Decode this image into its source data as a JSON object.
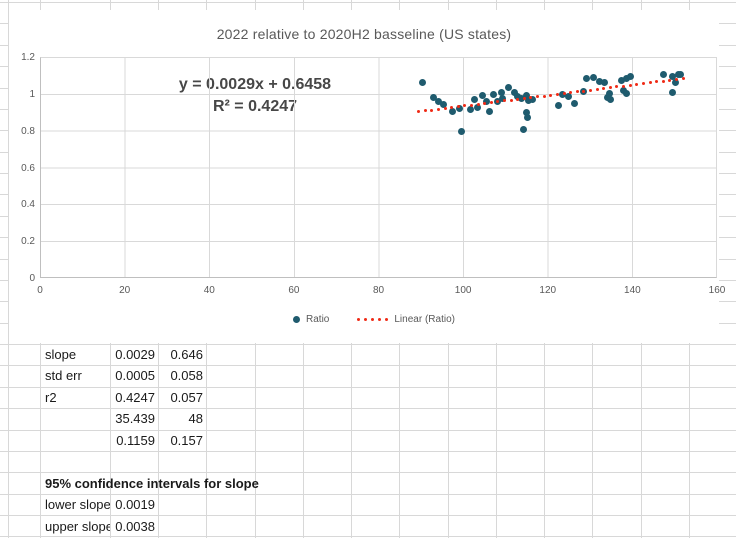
{
  "chart_data": {
    "type": "scatter",
    "title": "2022 relative to 2020H2 basseline (US states)",
    "annotations": [
      "y = 0.0029x + 0.6458",
      "R² = 0.4247"
    ],
    "xlim": [
      0,
      160
    ],
    "ylim": [
      0,
      1.2
    ],
    "x_ticks": [
      "0",
      "20",
      "40",
      "60",
      "80",
      "100",
      "120",
      "140",
      "160"
    ],
    "y_ticks": [
      "0",
      "0.2",
      "0.4",
      "0.6",
      "0.8",
      "1",
      "1.2"
    ],
    "grid": true,
    "legend_position": "bottom",
    "series": [
      {
        "name": "Ratio",
        "color": "#1F5B6E",
        "points": [
          [
            90.5,
            1.065
          ],
          [
            93.1,
            0.985
          ],
          [
            94.3,
            0.96
          ],
          [
            95.5,
            0.945
          ],
          [
            97.5,
            0.905
          ],
          [
            99.2,
            0.925
          ],
          [
            99.7,
            0.8
          ],
          [
            101.8,
            0.92
          ],
          [
            102.7,
            0.975
          ],
          [
            103.4,
            0.93
          ],
          [
            104.7,
            0.995
          ],
          [
            105.7,
            0.96
          ],
          [
            106.4,
            0.905
          ],
          [
            107.2,
            1.0
          ],
          [
            108.1,
            0.96
          ],
          [
            109.1,
            1.01
          ],
          [
            109.5,
            0.98
          ],
          [
            110.9,
            1.038
          ],
          [
            112.3,
            1.013
          ],
          [
            113.0,
            0.987
          ],
          [
            114.0,
            0.976
          ],
          [
            114.4,
            0.809
          ],
          [
            115.0,
            0.995
          ],
          [
            115.1,
            0.904
          ],
          [
            115.3,
            0.873
          ],
          [
            115.6,
            0.969
          ],
          [
            116.4,
            0.973
          ],
          [
            122.7,
            0.94
          ],
          [
            123.7,
            1.0
          ],
          [
            125.1,
            0.991
          ],
          [
            126.5,
            0.951
          ],
          [
            128.5,
            1.018
          ],
          [
            129.2,
            1.087
          ],
          [
            131.0,
            1.095
          ],
          [
            132.3,
            1.071
          ],
          [
            133.5,
            1.067
          ],
          [
            134.2,
            0.984
          ],
          [
            134.7,
            1.007
          ],
          [
            135.1,
            0.971
          ],
          [
            137.5,
            1.075
          ],
          [
            138.1,
            1.02
          ],
          [
            138.7,
            1.007
          ],
          [
            138.9,
            1.089
          ],
          [
            139.8,
            1.098
          ],
          [
            147.6,
            1.111
          ],
          [
            149.7,
            1.098
          ],
          [
            149.7,
            1.012
          ],
          [
            150.5,
            1.067
          ],
          [
            151.2,
            1.107
          ],
          [
            151.7,
            1.11
          ]
        ]
      }
    ],
    "trendline": {
      "name": "Linear (Ratio)",
      "style": "dotted",
      "color": "#EF2A16",
      "slope": 0.0029,
      "intercept": 0.6458,
      "x_start": 89.5,
      "x_end": 152.2
    }
  },
  "sheet": {
    "stats_table": {
      "rows": [
        {
          "label": "slope",
          "c1": "0.0029",
          "c2": "0.646"
        },
        {
          "label": "std err",
          "c1": "0.0005",
          "c2": "0.058"
        },
        {
          "label": "r2",
          "c1": "0.4247",
          "c2": "0.057"
        },
        {
          "label": "",
          "c1": "35.439",
          "c2": "48"
        },
        {
          "label": "",
          "c1": "0.1159",
          "c2": "0.157"
        }
      ]
    },
    "ci_section": {
      "title": "95% confidence intervals for slope",
      "rows": [
        {
          "label": "lower slope",
          "value": "0.0019"
        },
        {
          "label": "upper slope",
          "value": "0.0038"
        }
      ]
    }
  }
}
